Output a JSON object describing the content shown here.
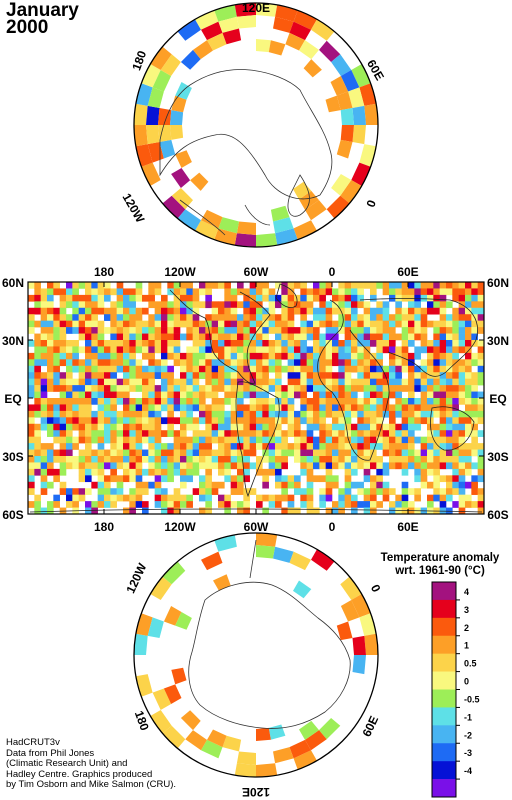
{
  "title": {
    "month": "January",
    "year": "2000"
  },
  "map": {
    "lon_ticks": [
      "180",
      "120W",
      "60W",
      "0",
      "60E"
    ],
    "lat_ticks": [
      "60N",
      "30N",
      "EQ",
      "30S",
      "60S"
    ],
    "north_polar_labels": {
      "top": "120E",
      "upper_left": "180",
      "upper_right": "60E",
      "lower_left": "120W",
      "lower_right": "0"
    },
    "south_polar_labels": {
      "upper_left": "120W",
      "upper_right": "0",
      "lower_left": "180",
      "lower_right": "60E",
      "bottom": "120E"
    }
  },
  "legend": {
    "title_line1": "Temperature anomaly",
    "title_line2": "wrt. 1961-90  (°C)",
    "classes": [
      {
        "label": "4",
        "color": "#a3127f"
      },
      {
        "label": "3",
        "color": "#e5001c"
      },
      {
        "label": "2",
        "color": "#fb5a0d"
      },
      {
        "label": "1",
        "color": "#fd9f27"
      },
      {
        "label": "0.5",
        "color": "#fcd34a"
      },
      {
        "label": "0",
        "color": "#f9f87f"
      },
      {
        "label": "-0.5",
        "color": "#9dee58"
      },
      {
        "label": "-1",
        "color": "#5ee0e7"
      },
      {
        "label": "-2",
        "color": "#48b4f2"
      },
      {
        "label": "-3",
        "color": "#1e6bf4"
      },
      {
        "label": "-4",
        "color": "#0512d6"
      }
    ],
    "extra_color": "#7a10e8"
  },
  "credits": [
    "HadCRUT3v",
    "Data from Phil Jones",
    "(Climatic Research Unit) and",
    "Hadley Centre.  Graphics produced",
    "by Tim Osborn and Mike Salmon (CRU)."
  ]
}
